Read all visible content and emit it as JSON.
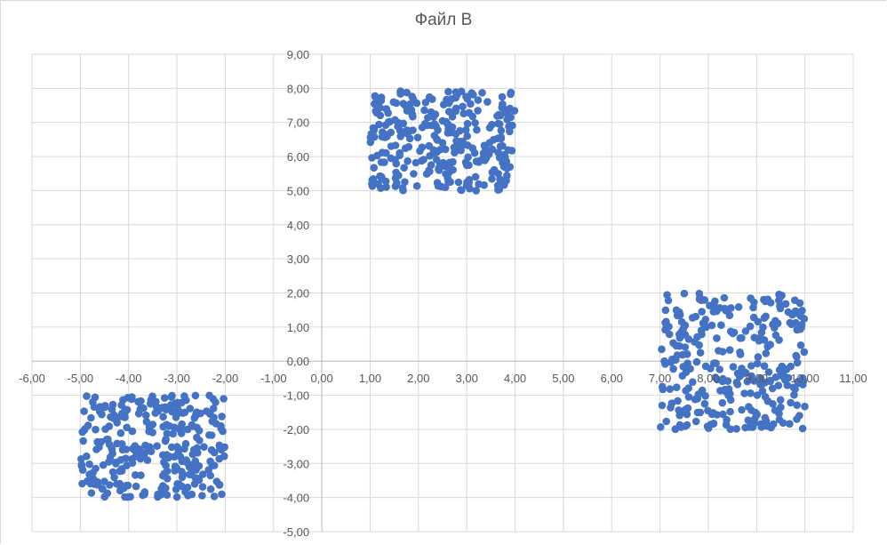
{
  "chart_data": {
    "type": "scatter",
    "title": "Файл B",
    "xlabel": "",
    "ylabel": "",
    "xlim": [
      -6,
      11
    ],
    "ylim": [
      -5,
      9
    ],
    "x_ticks": [
      "-6,00",
      "-5,00",
      "-4,00",
      "-3,00",
      "-2,00",
      "-1,00",
      "0,00",
      "1,00",
      "2,00",
      "3,00",
      "4,00",
      "5,00",
      "6,00",
      "7,00",
      "8,00",
      "9,00",
      "10,00",
      "11,00"
    ],
    "y_ticks": [
      "9,00",
      "8,00",
      "7,00",
      "6,00",
      "5,00",
      "4,00",
      "3,00",
      "2,00",
      "1,00",
      "0,00",
      "-1,00",
      "-2,00",
      "-3,00",
      "-4,00",
      "-5,00"
    ],
    "grid": true,
    "legend": "none",
    "marker_color": "#4472c4",
    "series": [
      {
        "clusters": [
          {
            "x_range": [
              -5.0,
              -2.0
            ],
            "y_range": [
              -4.0,
              -1.0
            ],
            "approx_points": 300
          },
          {
            "x_range": [
              1.0,
              4.0
            ],
            "y_range": [
              5.0,
              8.0
            ],
            "approx_points": 300
          },
          {
            "x_range": [
              7.0,
              10.0
            ],
            "y_range": [
              -2.0,
              2.0
            ],
            "approx_points": 300
          }
        ]
      }
    ]
  }
}
